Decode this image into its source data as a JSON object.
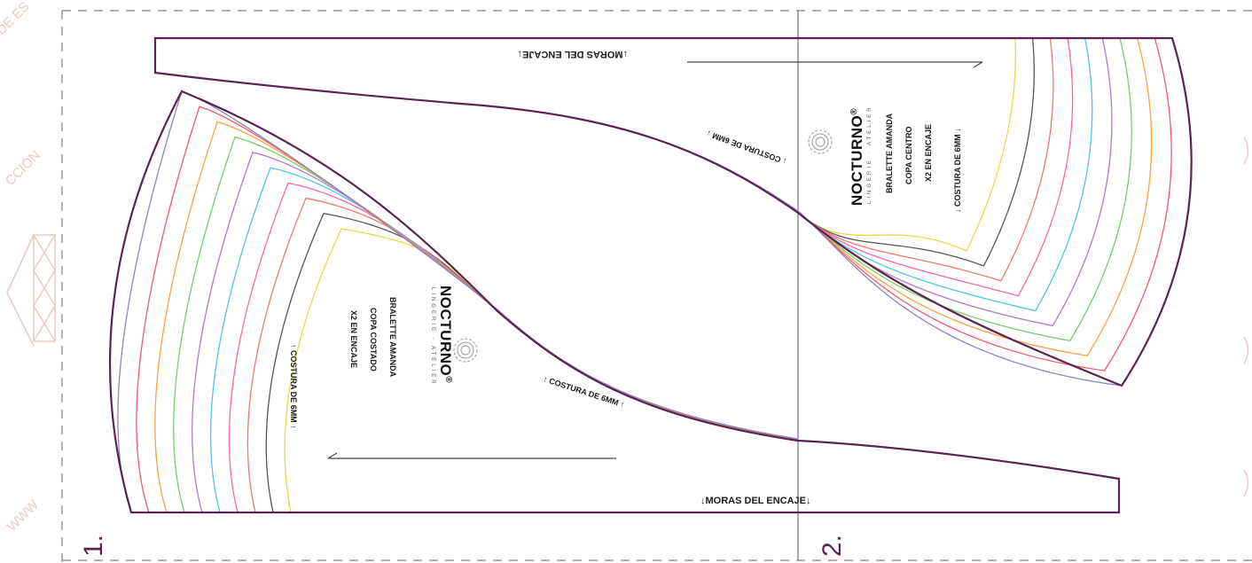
{
  "pieces": [
    {
      "number": "1.",
      "brand": "NOCTURNO",
      "registered_mark": "®",
      "tagline": "LINGERIE · ATELIER",
      "info_lines": [
        "BRALETTE AMANDA",
        "COPA COSTADO",
        "X2 EN ENCAJE"
      ],
      "seam_label": "COSTURA DE 6MM",
      "seam_label_middle": "COSTURA DE 6MM",
      "lace_edge_label": "MORAS DEL ENCAJE"
    },
    {
      "number": "2.",
      "brand": "NOCTURNO",
      "registered_mark": "®",
      "tagline": "LINGERIE · ATELIER",
      "info_lines": [
        "BRALETTE AMANDA",
        "COPA CENTRO",
        "X2 EN ENCAJE"
      ],
      "seam_label": "COSTURA DE 6MM",
      "seam_label_middle": "COSTURA DE 6MM",
      "lace_edge_label": "MORAS DEL ENCAJE"
    }
  ],
  "watermark": {
    "top_left": "DE ES",
    "middle_left": "CCIÓN",
    "bottom_left": "WWW"
  },
  "size_colors": [
    "#e6d84a",
    "#555555",
    "#f07a6a",
    "#ff66aa",
    "#4fc3ef",
    "#b07acc",
    "#6fcf6a",
    "#ff9f40",
    "#ee5a6f",
    "#8e85c2"
  ],
  "colors": {
    "outline": "#5a2450",
    "fold_line": "#555555",
    "cut_frame": "#999999",
    "piece_number": "#5a2450",
    "watermark": "#e6cbc5"
  }
}
